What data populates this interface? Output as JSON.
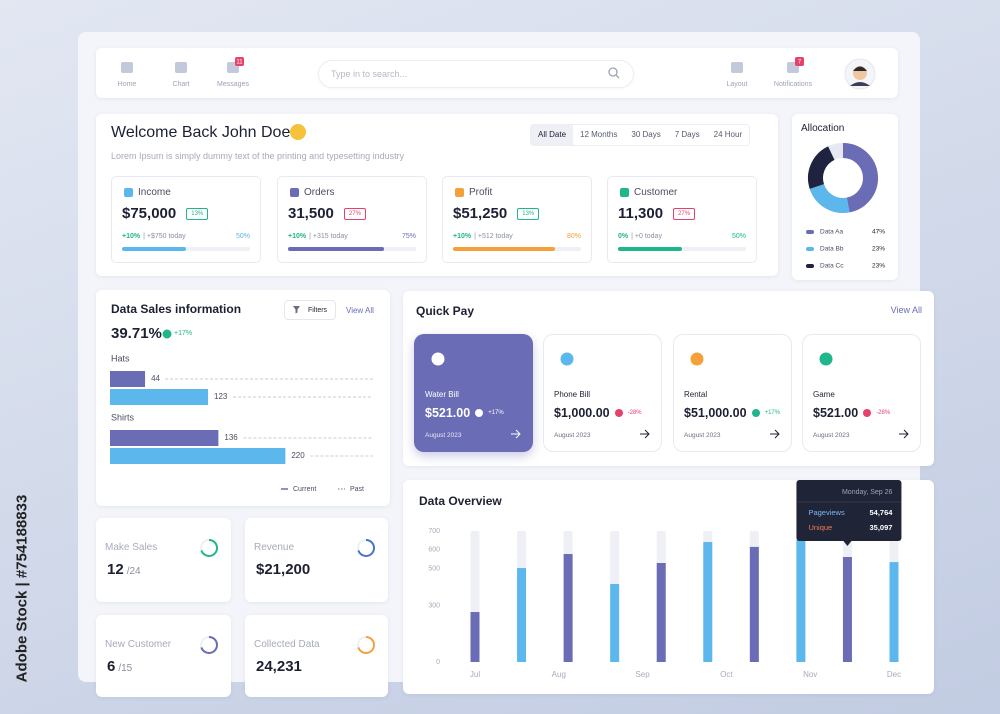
{
  "watermark": "Adobe Stock | #754188833",
  "nav": {
    "left": [
      {
        "label": "Home"
      },
      {
        "label": "Chart"
      },
      {
        "label": "Messages",
        "badge": 11
      }
    ],
    "search_placeholder": "Type in to search...",
    "right": [
      {
        "label": "Layout"
      },
      {
        "label": "Notifications",
        "badge": 7
      }
    ]
  },
  "welcome": {
    "title": "Welcome Back John Doe",
    "subtitle": "Lorem Ipsum is simply dummy text of the printing and typesetting industry",
    "filters": [
      "All Date",
      "12 Months",
      "30 Days",
      "7 Days",
      "24 Hour"
    ],
    "active_filter": "All Date",
    "stats": [
      {
        "label": "Income",
        "value": "$75,000",
        "change": "13%",
        "trend": "up",
        "today_change": "+10%",
        "today": "| +$750 today",
        "progress": {
          "value": 50,
          "label": "50%"
        },
        "color": "#5cb8ec"
      },
      {
        "label": "Orders",
        "value": "31,500",
        "change": "27%",
        "trend": "down",
        "today_change": "+10%",
        "today": "| +315 today",
        "progress": {
          "value": 75,
          "label": "75%"
        },
        "color": "#6a6cb5"
      },
      {
        "label": "Profit",
        "value": "$51,250",
        "change": "13%",
        "trend": "up",
        "today_change": "+10%",
        "today": "| +512 today",
        "progress": {
          "value": 80,
          "label": "80%"
        },
        "color": "#f5a13b"
      },
      {
        "label": "Customer",
        "value": "11,300",
        "change": "27%",
        "trend": "down",
        "today_change": "0%",
        "today": "| +0 today",
        "progress": {
          "value": 50,
          "label": "50%"
        },
        "color": "#1eb68a"
      }
    ]
  },
  "summary_cards": [
    {
      "label": "Make Sales",
      "value": 12,
      "suffix": "/24",
      "color": "#1eb68a"
    },
    {
      "label": "Revenue",
      "value": "$21,200",
      "color": "#4a74c9"
    },
    {
      "label": "New Customer",
      "value": 6,
      "suffix": "/15",
      "color": "#6a6cb5"
    },
    {
      "label": "Collected Data",
      "value": "24,231",
      "color": "#f5a13b"
    }
  ],
  "quick_pay": {
    "title": "Quick Pay",
    "view_all": "View All",
    "active": "Water Bill",
    "cards": [
      {
        "name": "Water Bill",
        "amount": "$521.00",
        "change": "+17%",
        "trend": "up",
        "date": "August 2023",
        "icon_color": "#ffffff"
      },
      {
        "name": "Phone Bill",
        "amount": "$1,000.00",
        "change": "-28%",
        "trend": "down",
        "date": "August 2023",
        "icon_color": "#5cb8ec"
      },
      {
        "name": "Rental",
        "amount": "$51,000.00",
        "change": "+17%",
        "trend": "up",
        "date": "August 2023",
        "icon_color": "#f5a13b"
      },
      {
        "name": "Game",
        "amount": "$521.00",
        "change": "-28%",
        "trend": "down",
        "date": "August 2023",
        "icon_color": "#1eb68a"
      }
    ]
  },
  "chart_data": [
    {
      "type": "donut",
      "title": "Allocation",
      "categories": [
        "Data Aa",
        "Data Bb",
        "Data Cc"
      ],
      "values": [
        47,
        23,
        23
      ],
      "value_labels": [
        "47%",
        "23%",
        "23%"
      ],
      "colors": [
        "#6a6cb5",
        "#5cb8ec",
        "#1f2340"
      ]
    },
    {
      "type": "hbar",
      "title": "Data Sales information",
      "filter_button": "Filters",
      "view_all": "View All",
      "headline": "39.71%",
      "headline_change": "+17%",
      "categories": [
        "Hats",
        "Shirts"
      ],
      "series": [
        {
          "name": "Current",
          "color": "#6a6cb5",
          "values": [
            44,
            136
          ]
        },
        {
          "name": "Past",
          "color": "#5cb8ec",
          "values": [
            123,
            220
          ]
        }
      ],
      "xlim": [
        0,
        330
      ]
    },
    {
      "type": "column",
      "title": "Data Overview",
      "x": [
        0,
        1,
        2,
        3,
        4,
        5,
        6,
        7,
        8,
        9
      ],
      "values": [
        267,
        502,
        577,
        417,
        529,
        641,
        615,
        652,
        561,
        534
      ],
      "colors": [
        "#6a6cb5",
        "#5cb8ec",
        "#6a6cb5",
        "#5cb8ec",
        "#6a6cb5",
        "#5cb8ec",
        "#6a6cb5",
        "#5cb8ec",
        "#6a6cb5",
        "#5cb8ec"
      ],
      "xlim": [
        0,
        9
      ],
      "xticks": [
        {
          "value": 0,
          "label": "Jul"
        },
        {
          "value": 1.8,
          "label": "Aug"
        },
        {
          "value": 3.6,
          "label": "Sep"
        },
        {
          "value": 5.4,
          "label": "Oct"
        },
        {
          "value": 7.2,
          "label": "Nov"
        },
        {
          "value": 9,
          "label": "Dec"
        }
      ],
      "ylim": [
        0,
        700
      ],
      "yticks": [
        0,
        300,
        500,
        600,
        700
      ],
      "tooltip": {
        "at": 8,
        "date": "Monday, Sep 26",
        "rows": [
          {
            "name": "Pageviews",
            "value": "54,764",
            "color": "#7ab8f5"
          },
          {
            "name": "Unique",
            "value": "35,097",
            "color": "#f07b5a"
          }
        ]
      }
    }
  ]
}
